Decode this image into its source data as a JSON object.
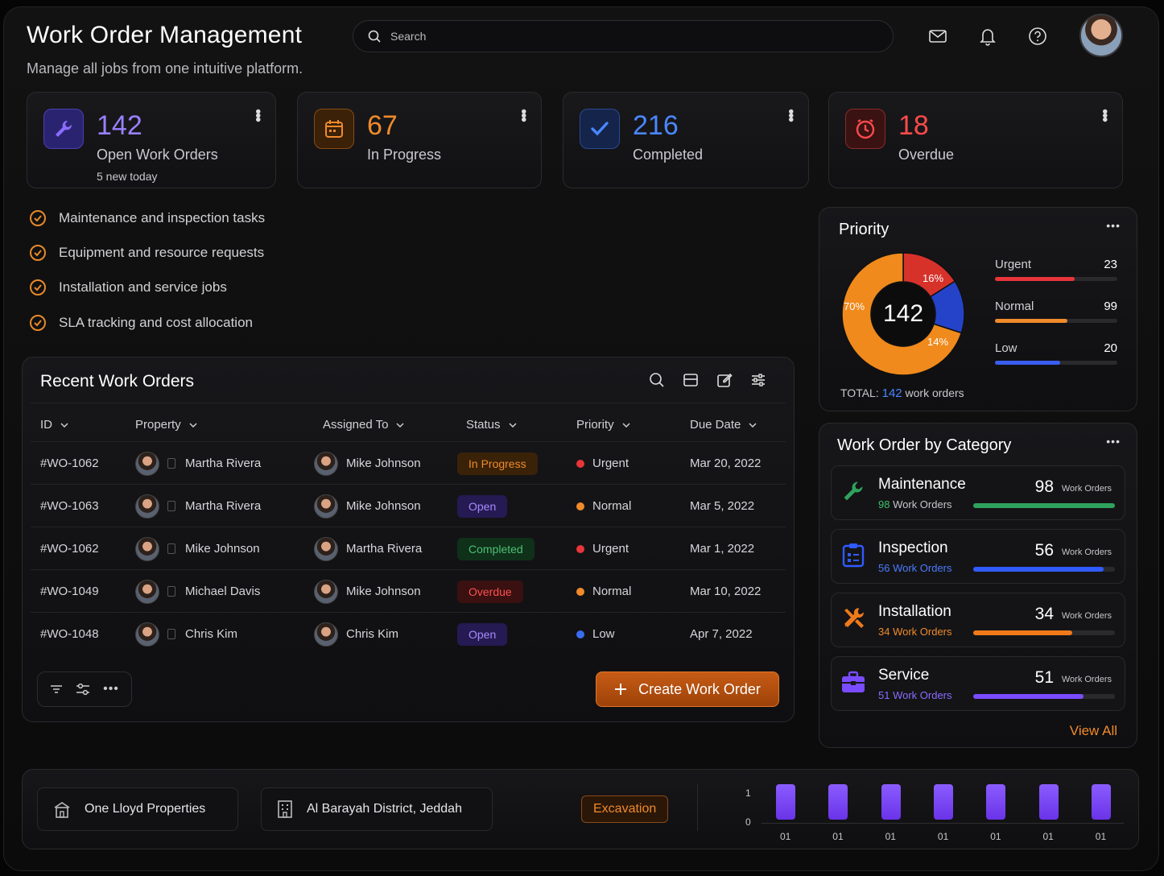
{
  "header": {
    "title": "Work Order Management",
    "subtitle": "Manage all jobs from one intuitive platform.",
    "search_placeholder": "Search"
  },
  "icons": {
    "mail": "mail-icon",
    "bell": "bell-icon",
    "help": "help-icon"
  },
  "stats": [
    {
      "value": "142",
      "label": "Open Work Orders",
      "sub": "5 new today",
      "color": "#8a6cff",
      "icon": "wrench-icon"
    },
    {
      "value": "67",
      "label": "In Progress",
      "color": "#f08a2b",
      "icon": "calendar-icon"
    },
    {
      "value": "216",
      "label": "Completed",
      "color": "#4a86ff",
      "icon": "check-icon"
    },
    {
      "value": "18",
      "label": "Overdue",
      "color": "#ff4a4a",
      "icon": "clock-icon"
    }
  ],
  "features": [
    "Maintenance and inspection tasks",
    "Equipment and resource requests",
    "Installation and service jobs",
    "SLA tracking and cost allocation"
  ],
  "table": {
    "title": "Recent Work Orders",
    "columns": [
      "ID",
      "Property",
      "Assigned To",
      "Status",
      "Priority",
      "Due Date"
    ],
    "rows": [
      {
        "id": "#WO-1062",
        "property": "Martha Rivera",
        "assigned": "Mike Johnson",
        "status": "In Progress",
        "priority": "Urgent",
        "due": "Mar 20, 2022"
      },
      {
        "id": "#WO-1063",
        "property": "Martha Rivera",
        "assigned": "Mike Johnson",
        "status": "Open",
        "priority": "Normal",
        "due": "Mar 5, 2022"
      },
      {
        "id": "#WO-1062",
        "property": "Mike Johnson",
        "assigned": "Martha Rivera",
        "status": "Completed",
        "priority": "Urgent",
        "due": "Mar 1, 2022"
      },
      {
        "id": "#WO-1049",
        "property": "Michael Davis",
        "assigned": "Mike Johnson",
        "status": "Overdue",
        "priority": "Normal",
        "due": "Mar 10, 2022"
      },
      {
        "id": "#WO-1048",
        "property": "Chris Kim",
        "assigned": "Chris Kim",
        "status": "Open",
        "priority": "Low",
        "due": "Apr 7, 2022"
      }
    ],
    "create_label": "Create Work Order"
  },
  "priority": {
    "title": "Priority",
    "center": "142",
    "total_label": "TOTAL:",
    "total_value": "142",
    "total_unit": "work orders",
    "slices": [
      {
        "name": "Urgent",
        "pct": "16%",
        "fraction": 0.16,
        "color": "#d7322a"
      },
      {
        "name": "Low",
        "pct": "14%",
        "fraction": 0.14,
        "color": "#2443c9"
      },
      {
        "name": "Normal",
        "pct": "70%",
        "fraction": 0.7,
        "color": "#f08a1c"
      }
    ],
    "bars": [
      {
        "name": "Urgent",
        "value": "23",
        "fill": 0.65,
        "color": "#e8353a"
      },
      {
        "name": "Normal",
        "value": "99",
        "fill": 0.59,
        "color": "#f08a2b"
      },
      {
        "name": "Low",
        "value": "20",
        "fill": 0.53,
        "color": "#3a5ef0"
      }
    ]
  },
  "category": {
    "title": "Work Order by Category",
    "view_all": "View All",
    "unit": "Work Orders",
    "items": [
      {
        "name": "Maintenance",
        "value": "98",
        "sub": "98",
        "fill": 1.0,
        "color": "#2fa35d",
        "subcolor": "#3cc06c",
        "icon": "wrench-icon"
      },
      {
        "name": "Inspection",
        "value": "56",
        "sub": "56 Work Orders",
        "fill": 0.92,
        "color": "#2f5bff",
        "subcolor": "#4a7bff",
        "icon": "clipboard-icon"
      },
      {
        "name": "Installation",
        "value": "34",
        "sub": "34 Work Orders",
        "fill": 0.7,
        "color": "#f07a1a",
        "subcolor": "#f08a2b",
        "icon": "tools-icon"
      },
      {
        "name": "Service",
        "value": "51",
        "sub": "51 Work Orders",
        "fill": 0.78,
        "color": "#7a4cff",
        "subcolor": "#8a6cff",
        "icon": "briefcase-icon"
      }
    ]
  },
  "bottom": {
    "property": "One Lloyd Properties",
    "location": "Al Barayah District, Jeddah",
    "tag": "Excavation"
  },
  "chart_data": {
    "type": "bar",
    "categories": [
      "01",
      "01",
      "01",
      "01",
      "01",
      "01",
      "01"
    ],
    "values": [
      1,
      1,
      1,
      1,
      1,
      1,
      1
    ],
    "yticks": [
      "1",
      "0"
    ],
    "ylim": [
      0,
      1
    ]
  }
}
